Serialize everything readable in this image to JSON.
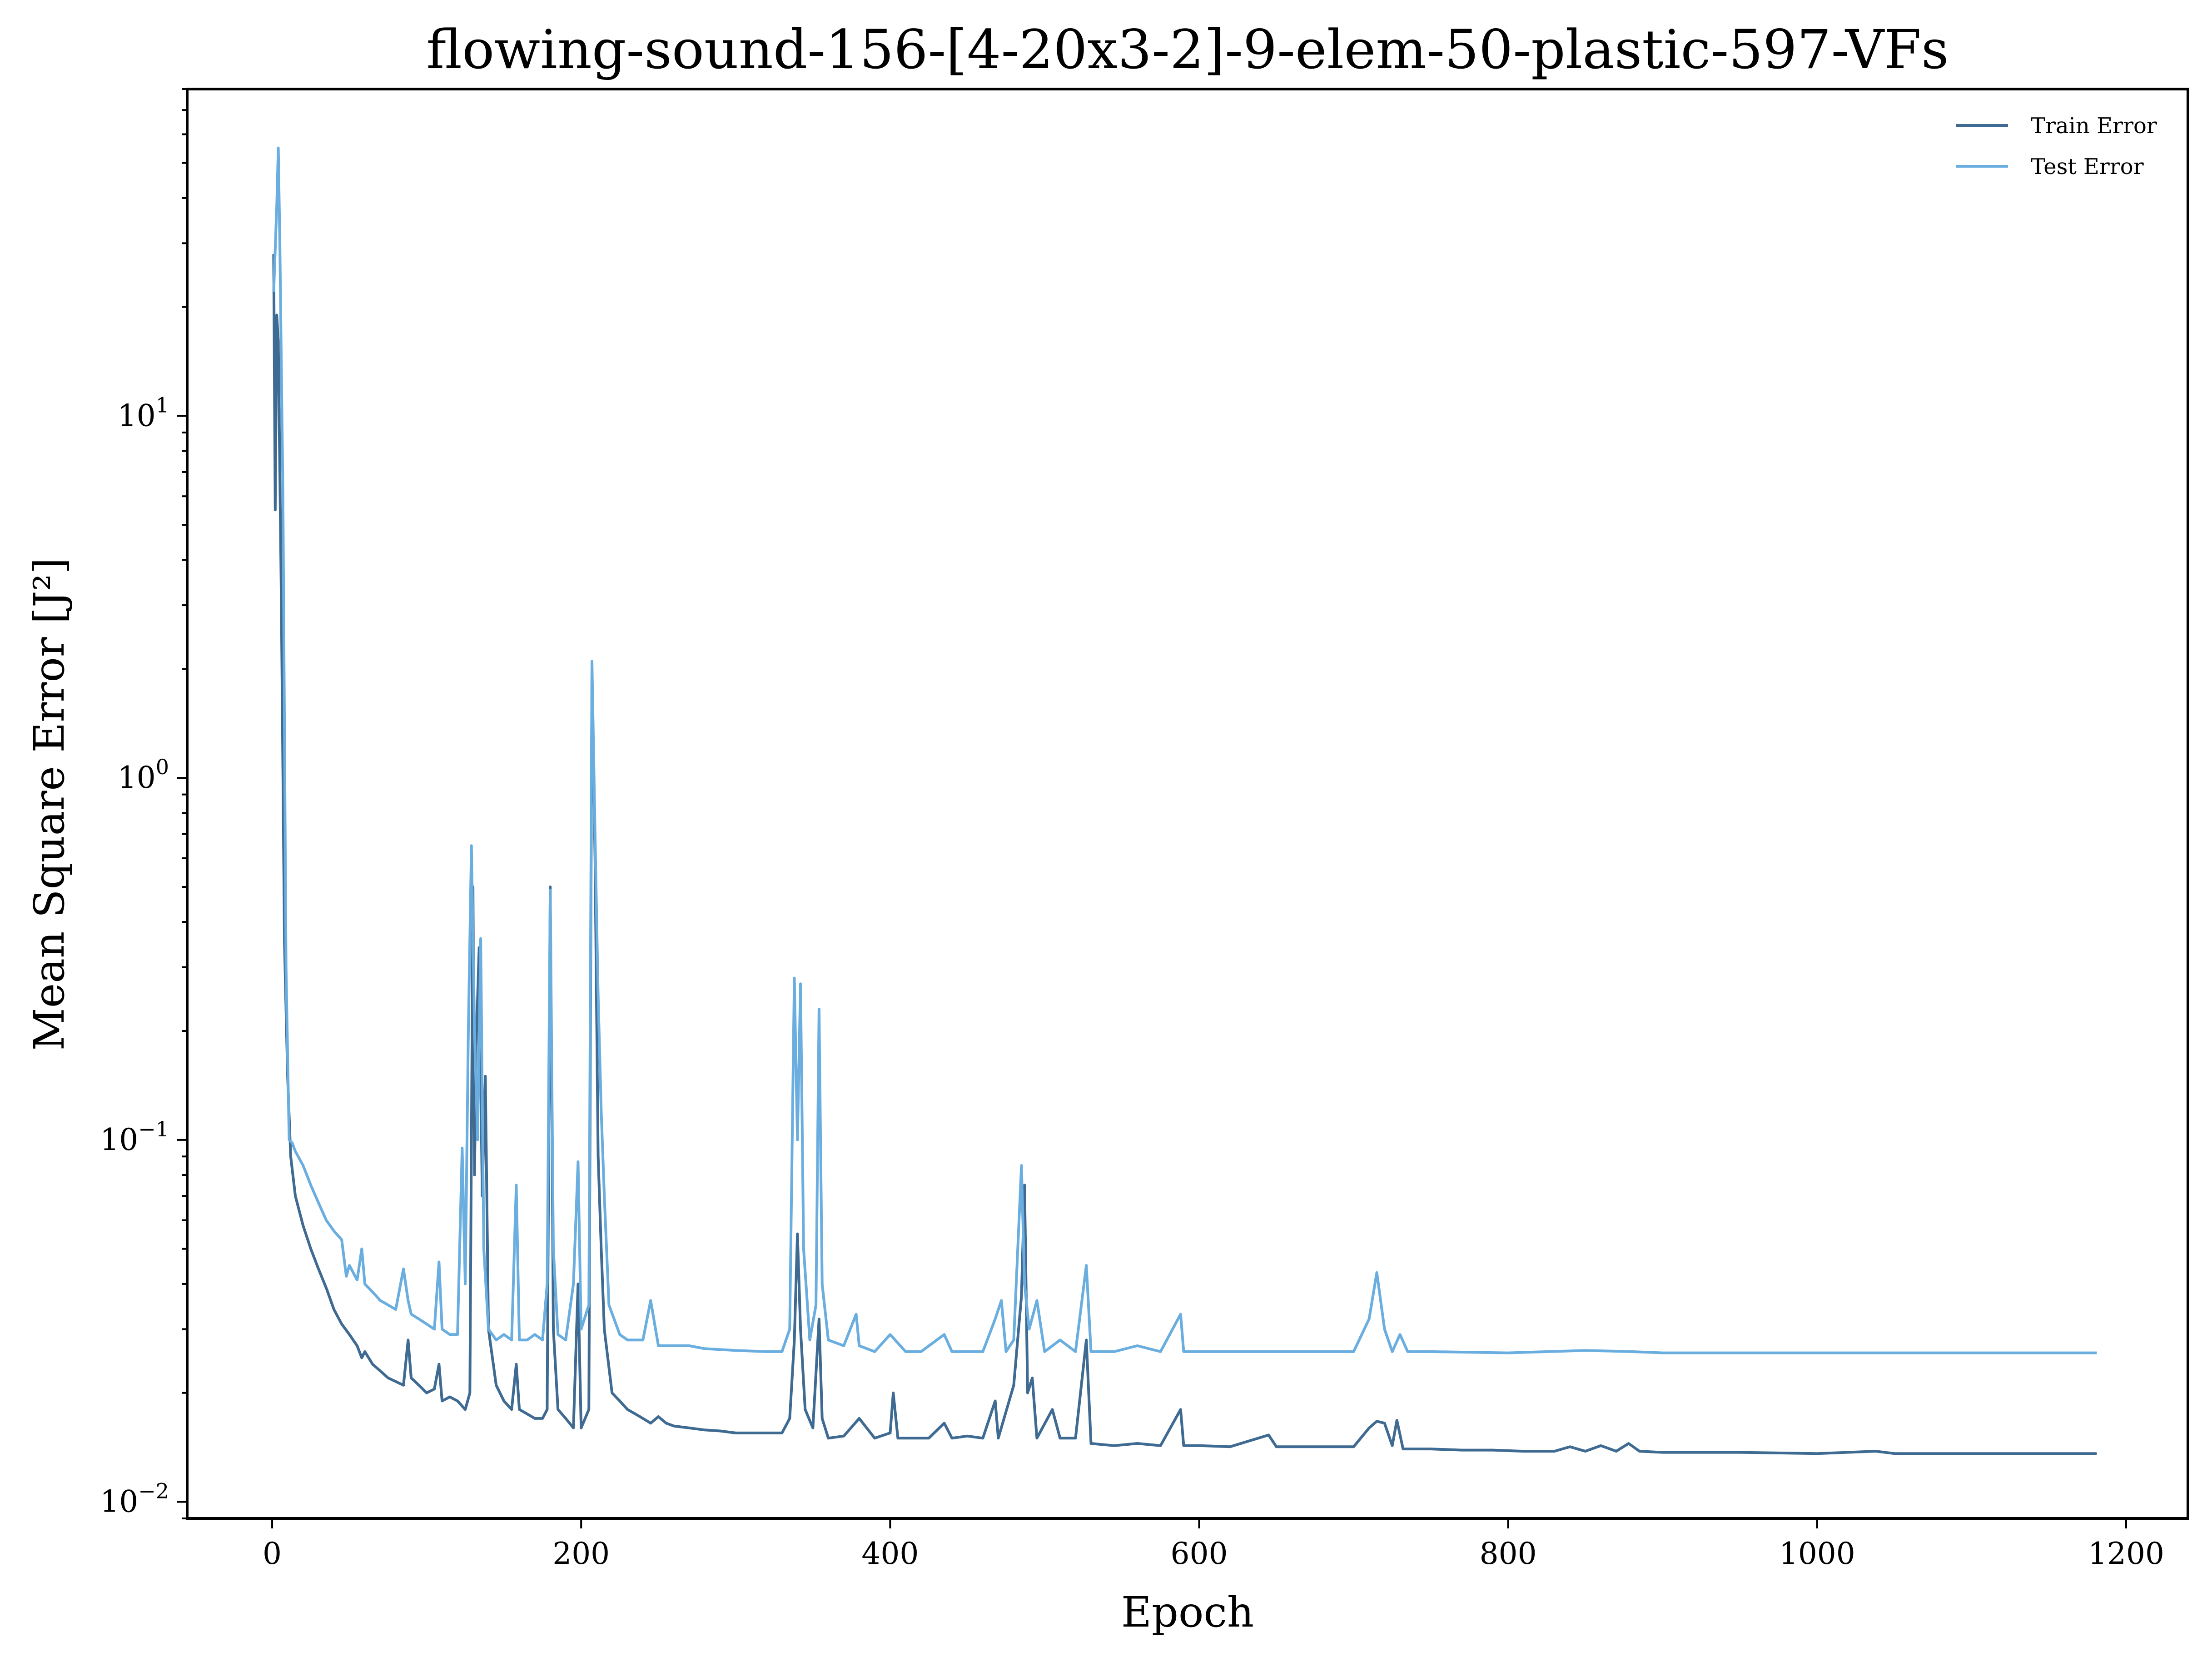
{
  "chart_data": {
    "type": "line",
    "title": "flowing-sound-156-[4-20x3-2]-9-elem-50-plastic-597-VFs",
    "xlabel": "Epoch",
    "ylabel": "Mean Square Error [J²]",
    "xlim": [
      -55,
      1240
    ],
    "ylim": [
      0.009,
      80
    ],
    "yscale": "log",
    "grid": false,
    "legend": "top-right",
    "xticks": [
      {
        "value": 0,
        "label": "0"
      },
      {
        "value": 200,
        "label": "200"
      },
      {
        "value": 400,
        "label": "400"
      },
      {
        "value": 600,
        "label": "600"
      },
      {
        "value": 800,
        "label": "800"
      },
      {
        "value": 1000,
        "label": "1000"
      },
      {
        "value": 1200,
        "label": "1200"
      }
    ],
    "yticks": [
      {
        "value": 0.01,
        "base": "10",
        "exp": "−2"
      },
      {
        "value": 0.1,
        "base": "10",
        "exp": "−1"
      },
      {
        "value": 1,
        "base": "10",
        "exp": "0"
      },
      {
        "value": 10,
        "base": "10",
        "exp": "1"
      }
    ],
    "series": [
      {
        "name": "Train Error",
        "color": "#3f6a92",
        "points": [
          [
            1,
            28
          ],
          [
            2,
            5.5
          ],
          [
            3,
            19
          ],
          [
            4,
            16
          ],
          [
            6,
            3
          ],
          [
            8,
            0.35
          ],
          [
            10,
            0.15
          ],
          [
            12,
            0.09
          ],
          [
            15,
            0.07
          ],
          [
            20,
            0.058
          ],
          [
            25,
            0.05
          ],
          [
            30,
            0.044
          ],
          [
            35,
            0.039
          ],
          [
            40,
            0.034
          ],
          [
            45,
            0.031
          ],
          [
            50,
            0.029
          ],
          [
            55,
            0.027
          ],
          [
            58,
            0.025
          ],
          [
            60,
            0.026
          ],
          [
            65,
            0.024
          ],
          [
            70,
            0.023
          ],
          [
            75,
            0.022
          ],
          [
            80,
            0.0215
          ],
          [
            85,
            0.021
          ],
          [
            88,
            0.028
          ],
          [
            90,
            0.022
          ],
          [
            95,
            0.021
          ],
          [
            100,
            0.02
          ],
          [
            105,
            0.0205
          ],
          [
            108,
            0.024
          ],
          [
            110,
            0.019
          ],
          [
            115,
            0.0195
          ],
          [
            120,
            0.019
          ],
          [
            125,
            0.018
          ],
          [
            128,
            0.02
          ],
          [
            130,
            0.5
          ],
          [
            131,
            0.08
          ],
          [
            132,
            0.18
          ],
          [
            134,
            0.34
          ],
          [
            136,
            0.07
          ],
          [
            138,
            0.15
          ],
          [
            140,
            0.03
          ],
          [
            145,
            0.021
          ],
          [
            150,
            0.019
          ],
          [
            155,
            0.018
          ],
          [
            158,
            0.024
          ],
          [
            160,
            0.018
          ],
          [
            165,
            0.0175
          ],
          [
            170,
            0.017
          ],
          [
            175,
            0.017
          ],
          [
            178,
            0.018
          ],
          [
            180,
            0.5
          ],
          [
            182,
            0.03
          ],
          [
            185,
            0.018
          ],
          [
            190,
            0.017
          ],
          [
            195,
            0.016
          ],
          [
            198,
            0.04
          ],
          [
            200,
            0.016
          ],
          [
            205,
            0.018
          ],
          [
            207,
            2.0
          ],
          [
            209,
            0.6
          ],
          [
            211,
            0.09
          ],
          [
            213,
            0.05
          ],
          [
            215,
            0.03
          ],
          [
            220,
            0.02
          ],
          [
            225,
            0.019
          ],
          [
            230,
            0.018
          ],
          [
            235,
            0.0175
          ],
          [
            240,
            0.017
          ],
          [
            245,
            0.0165
          ],
          [
            250,
            0.0172
          ],
          [
            255,
            0.0165
          ],
          [
            260,
            0.0162
          ],
          [
            270,
            0.016
          ],
          [
            280,
            0.0158
          ],
          [
            290,
            0.0157
          ],
          [
            300,
            0.0155
          ],
          [
            310,
            0.0155
          ],
          [
            320,
            0.0155
          ],
          [
            330,
            0.0155
          ],
          [
            335,
            0.017
          ],
          [
            338,
            0.028
          ],
          [
            340,
            0.055
          ],
          [
            342,
            0.03
          ],
          [
            345,
            0.018
          ],
          [
            350,
            0.016
          ],
          [
            354,
            0.032
          ],
          [
            356,
            0.017
          ],
          [
            360,
            0.015
          ],
          [
            370,
            0.0152
          ],
          [
            380,
            0.017
          ],
          [
            390,
            0.015
          ],
          [
            400,
            0.0155
          ],
          [
            402,
            0.02
          ],
          [
            405,
            0.015
          ],
          [
            415,
            0.015
          ],
          [
            425,
            0.015
          ],
          [
            435,
            0.0165
          ],
          [
            440,
            0.015
          ],
          [
            450,
            0.0152
          ],
          [
            460,
            0.015
          ],
          [
            468,
            0.019
          ],
          [
            470,
            0.015
          ],
          [
            480,
            0.021
          ],
          [
            485,
            0.037
          ],
          [
            487,
            0.075
          ],
          [
            489,
            0.02
          ],
          [
            492,
            0.022
          ],
          [
            495,
            0.015
          ],
          [
            505,
            0.018
          ],
          [
            510,
            0.015
          ],
          [
            520,
            0.015
          ],
          [
            527,
            0.028
          ],
          [
            530,
            0.0145
          ],
          [
            545,
            0.0143
          ],
          [
            560,
            0.0145
          ],
          [
            575,
            0.0143
          ],
          [
            588,
            0.018
          ],
          [
            590,
            0.0143
          ],
          [
            600,
            0.0143
          ],
          [
            620,
            0.0142
          ],
          [
            645,
            0.0153
          ],
          [
            650,
            0.0142
          ],
          [
            670,
            0.0142
          ],
          [
            700,
            0.0142
          ],
          [
            710,
            0.016
          ],
          [
            715,
            0.0167
          ],
          [
            720,
            0.0165
          ],
          [
            725,
            0.0143
          ],
          [
            728,
            0.0168
          ],
          [
            732,
            0.014
          ],
          [
            750,
            0.014
          ],
          [
            770,
            0.0139
          ],
          [
            790,
            0.0139
          ],
          [
            810,
            0.0138
          ],
          [
            830,
            0.0138
          ],
          [
            840,
            0.0142
          ],
          [
            850,
            0.0138
          ],
          [
            860,
            0.0143
          ],
          [
            870,
            0.0138
          ],
          [
            878,
            0.0145
          ],
          [
            885,
            0.0138
          ],
          [
            900,
            0.0137
          ],
          [
            950,
            0.0137
          ],
          [
            1000,
            0.0136
          ],
          [
            1038,
            0.0138
          ],
          [
            1050,
            0.0136
          ],
          [
            1100,
            0.0136
          ],
          [
            1150,
            0.0136
          ],
          [
            1181,
            0.0136
          ]
        ]
      },
      {
        "name": "Test Error",
        "color": "#6aaee0",
        "points": [
          [
            1,
            22
          ],
          [
            3,
            38
          ],
          [
            4,
            55
          ],
          [
            5,
            30
          ],
          [
            7,
            6
          ],
          [
            9,
            0.3
          ],
          [
            11,
            0.1
          ],
          [
            13,
            0.098
          ],
          [
            15,
            0.093
          ],
          [
            20,
            0.085
          ],
          [
            25,
            0.075
          ],
          [
            30,
            0.067
          ],
          [
            35,
            0.06
          ],
          [
            40,
            0.056
          ],
          [
            45,
            0.053
          ],
          [
            48,
            0.042
          ],
          [
            50,
            0.045
          ],
          [
            55,
            0.041
          ],
          [
            58,
            0.05
          ],
          [
            60,
            0.04
          ],
          [
            65,
            0.038
          ],
          [
            70,
            0.036
          ],
          [
            75,
            0.035
          ],
          [
            80,
            0.034
          ],
          [
            85,
            0.044
          ],
          [
            88,
            0.036
          ],
          [
            90,
            0.033
          ],
          [
            95,
            0.032
          ],
          [
            100,
            0.031
          ],
          [
            105,
            0.03
          ],
          [
            108,
            0.046
          ],
          [
            110,
            0.03
          ],
          [
            115,
            0.029
          ],
          [
            120,
            0.029
          ],
          [
            123,
            0.095
          ],
          [
            125,
            0.04
          ],
          [
            127,
            0.2
          ],
          [
            129,
            0.65
          ],
          [
            131,
            0.2
          ],
          [
            133,
            0.1
          ],
          [
            135,
            0.36
          ],
          [
            137,
            0.05
          ],
          [
            140,
            0.03
          ],
          [
            145,
            0.028
          ],
          [
            150,
            0.029
          ],
          [
            155,
            0.028
          ],
          [
            158,
            0.075
          ],
          [
            160,
            0.028
          ],
          [
            165,
            0.028
          ],
          [
            170,
            0.029
          ],
          [
            175,
            0.028
          ],
          [
            178,
            0.04
          ],
          [
            180,
            0.49
          ],
          [
            182,
            0.05
          ],
          [
            185,
            0.029
          ],
          [
            190,
            0.028
          ],
          [
            195,
            0.04
          ],
          [
            198,
            0.087
          ],
          [
            200,
            0.03
          ],
          [
            205,
            0.035
          ],
          [
            207,
            2.1
          ],
          [
            209,
            0.7
          ],
          [
            211,
            0.25
          ],
          [
            213,
            0.12
          ],
          [
            215,
            0.07
          ],
          [
            218,
            0.035
          ],
          [
            225,
            0.029
          ],
          [
            230,
            0.028
          ],
          [
            240,
            0.028
          ],
          [
            245,
            0.036
          ],
          [
            250,
            0.027
          ],
          [
            260,
            0.027
          ],
          [
            270,
            0.027
          ],
          [
            280,
            0.0265
          ],
          [
            300,
            0.0262
          ],
          [
            320,
            0.026
          ],
          [
            330,
            0.026
          ],
          [
            335,
            0.03
          ],
          [
            338,
            0.28
          ],
          [
            340,
            0.1
          ],
          [
            342,
            0.27
          ],
          [
            344,
            0.05
          ],
          [
            348,
            0.028
          ],
          [
            352,
            0.035
          ],
          [
            354,
            0.23
          ],
          [
            356,
            0.04
          ],
          [
            360,
            0.028
          ],
          [
            370,
            0.027
          ],
          [
            378,
            0.033
          ],
          [
            380,
            0.027
          ],
          [
            390,
            0.026
          ],
          [
            400,
            0.029
          ],
          [
            410,
            0.026
          ],
          [
            420,
            0.026
          ],
          [
            435,
            0.029
          ],
          [
            440,
            0.026
          ],
          [
            450,
            0.026
          ],
          [
            460,
            0.026
          ],
          [
            468,
            0.032
          ],
          [
            472,
            0.036
          ],
          [
            475,
            0.026
          ],
          [
            480,
            0.028
          ],
          [
            485,
            0.085
          ],
          [
            487,
            0.04
          ],
          [
            490,
            0.03
          ],
          [
            495,
            0.036
          ],
          [
            500,
            0.026
          ],
          [
            510,
            0.028
          ],
          [
            520,
            0.026
          ],
          [
            527,
            0.045
          ],
          [
            530,
            0.026
          ],
          [
            545,
            0.026
          ],
          [
            560,
            0.027
          ],
          [
            575,
            0.026
          ],
          [
            588,
            0.033
          ],
          [
            590,
            0.026
          ],
          [
            600,
            0.026
          ],
          [
            620,
            0.026
          ],
          [
            650,
            0.026
          ],
          [
            680,
            0.026
          ],
          [
            700,
            0.026
          ],
          [
            710,
            0.032
          ],
          [
            715,
            0.043
          ],
          [
            720,
            0.03
          ],
          [
            725,
            0.026
          ],
          [
            730,
            0.029
          ],
          [
            735,
            0.026
          ],
          [
            750,
            0.026
          ],
          [
            800,
            0.0258
          ],
          [
            850,
            0.0262
          ],
          [
            880,
            0.026
          ],
          [
            900,
            0.0258
          ],
          [
            950,
            0.0258
          ],
          [
            1000,
            0.0258
          ],
          [
            1050,
            0.0258
          ],
          [
            1100,
            0.0258
          ],
          [
            1150,
            0.0258
          ],
          [
            1181,
            0.0258
          ]
        ]
      }
    ]
  }
}
